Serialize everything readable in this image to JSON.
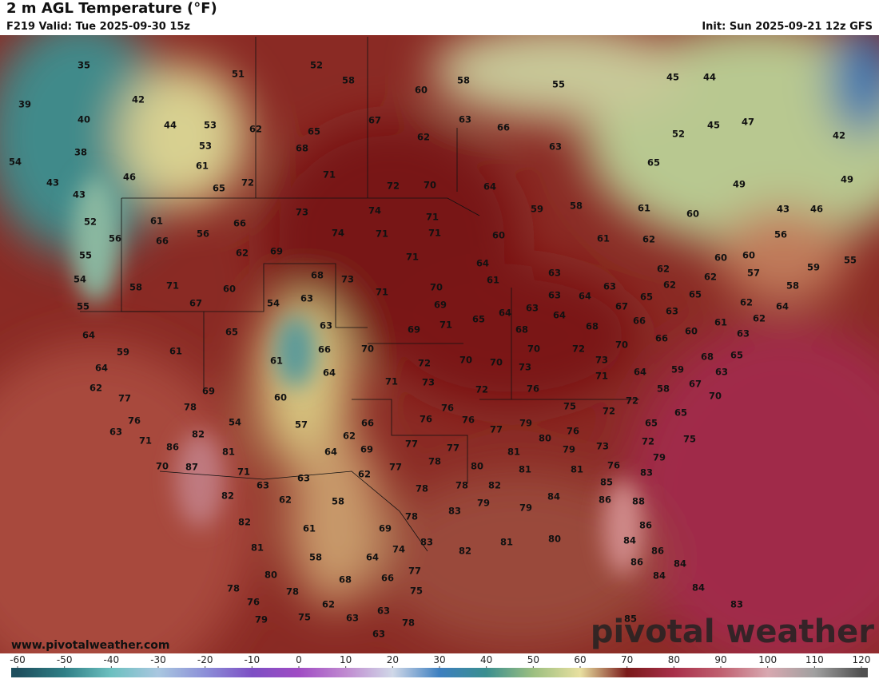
{
  "header": {
    "title": "2 m AGL Temperature (°F)",
    "valid": "F219 Valid: Tue 2025-09-30 15z",
    "init": "Init: Sun 2025-09-21 12z GFS"
  },
  "map": {
    "labels": [
      35,
      52,
      58,
      51,
      60,
      58,
      55,
      45,
      44,
      39,
      42,
      67,
      63,
      66,
      40,
      44,
      53,
      62,
      65,
      62,
      45,
      47,
      42,
      52,
      38,
      53,
      68,
      63,
      54,
      61,
      71,
      65,
      49,
      49,
      46,
      43,
      65,
      72,
      72,
      70,
      64,
      43,
      52,
      61,
      66,
      73,
      74,
      71,
      59,
      58,
      61,
      60,
      43,
      46,
      56,
      66,
      56,
      74,
      71,
      71,
      60,
      56,
      61,
      62,
      55,
      62,
      69,
      71,
      64,
      60,
      60,
      59,
      55,
      54,
      58,
      71,
      60,
      68,
      73,
      61,
      63,
      62,
      57,
      62,
      54,
      63,
      71,
      70,
      63,
      64,
      63,
      62,
      65,
      65,
      58,
      55,
      67,
      69,
      64,
      65,
      63,
      64,
      67,
      63,
      62,
      64,
      63,
      66,
      61,
      62,
      64,
      65,
      69,
      71,
      68,
      68,
      60,
      63,
      59,
      61,
      66,
      70,
      70,
      72,
      70,
      66,
      61,
      72,
      70,
      70,
      73,
      73,
      68,
      65,
      64,
      64,
      64,
      59,
      63,
      62,
      71,
      73,
      72,
      71,
      67,
      58,
      70,
      76,
      77,
      69,
      60,
      72,
      75,
      78,
      76,
      54,
      57,
      66,
      76,
      76,
      76,
      72,
      65,
      65,
      63,
      82,
      62,
      77,
      79,
      80,
      76,
      75,
      71,
      86,
      69,
      77,
      77,
      72,
      73,
      79,
      81,
      64,
      78,
      81,
      76,
      79,
      70,
      87,
      71,
      77,
      80,
      81,
      81,
      62,
      63,
      63,
      78,
      78,
      82,
      85,
      83,
      82,
      62,
      58,
      79,
      84,
      86,
      88,
      83,
      78,
      79,
      82,
      61,
      69,
      86,
      81,
      74,
      83,
      82,
      81,
      80,
      84,
      86,
      58,
      64,
      86,
      84,
      80,
      68,
      66,
      77,
      84,
      78,
      78,
      75,
      84,
      76,
      62,
      63,
      78,
      83,
      79,
      75,
      63,
      85,
      63
    ]
  },
  "colorbar": {
    "ticks": [
      -60,
      -50,
      -40,
      -30,
      -20,
      -10,
      0,
      10,
      20,
      30,
      40,
      50,
      60,
      70,
      80,
      90,
      100,
      110,
      120
    ],
    "colors": [
      "#1e4f5e",
      "#2f7f86",
      "#6cc0c0",
      "#a9c7e0",
      "#8c8fd8",
      "#7d4fc4",
      "#a04cc4",
      "#c08ad0",
      "#d0d8e8",
      "#3d7fc0",
      "#3a8f8f",
      "#9cbf80",
      "#e8e0a0",
      "#7a1a1a",
      "#a8304a",
      "#c06070",
      "#d8a8b0",
      "#a0a0a0",
      "#505050"
    ]
  },
  "footer": {
    "url": "www.pivotalweather.com",
    "brand": "pivotal weather"
  }
}
